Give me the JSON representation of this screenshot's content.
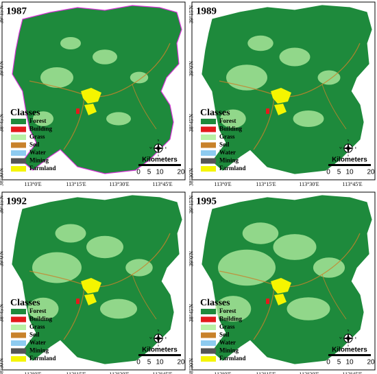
{
  "panels": [
    {
      "year": "1987"
    },
    {
      "year": "1989"
    },
    {
      "year": "1992"
    },
    {
      "year": "1995"
    }
  ],
  "legend": {
    "title": "Classes",
    "classes": [
      {
        "name": "Forest",
        "color": "#1e8a3c"
      },
      {
        "name": "Building",
        "color": "#e31a1c"
      },
      {
        "name": "Grass",
        "color": "#b8f0a4"
      },
      {
        "name": "Soil",
        "color": "#c8822a"
      },
      {
        "name": "Water",
        "color": "#8ecbf0"
      },
      {
        "name": "Mining",
        "color": "#555555"
      },
      {
        "name": "Farmland",
        "color": "#f5f500"
      }
    ]
  },
  "scale": {
    "title": "Kilometers",
    "ticks": [
      0,
      5,
      10,
      20
    ]
  },
  "compass": [
    "N",
    "E",
    "S",
    "W"
  ],
  "latitude_labels": [
    "39°15'N",
    "39°0'N",
    "38°45'N",
    "38°30'N"
  ],
  "longitude_labels": [
    "113°0'E",
    "113°15'E",
    "113°30'E",
    "113°45'E"
  ]
}
